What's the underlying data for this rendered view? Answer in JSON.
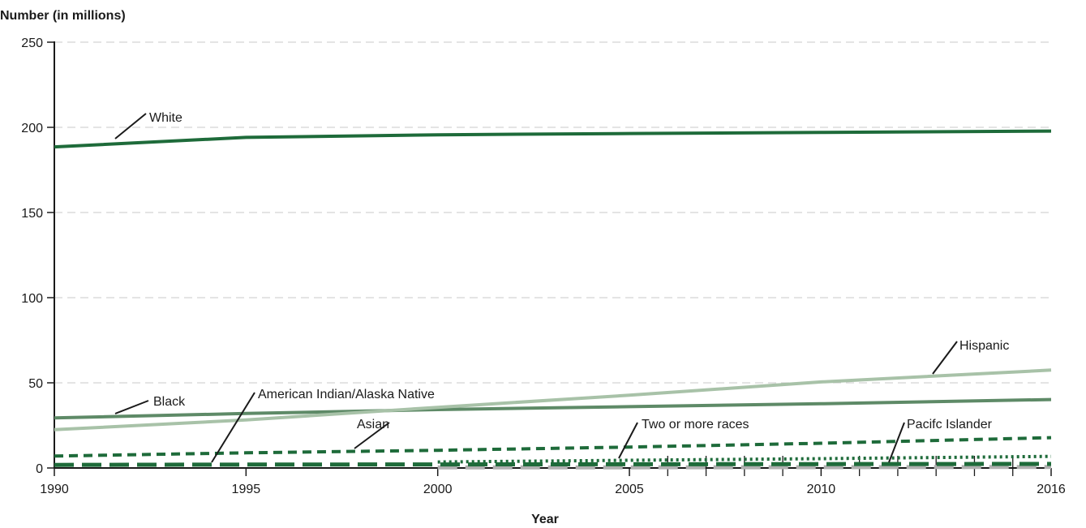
{
  "chart_data": {
    "type": "line",
    "ylabel": "Number (in millions)",
    "xlabel": "Year",
    "xlim": [
      1990,
      2016
    ],
    "ylim": [
      0,
      250
    ],
    "x_ticks": [
      1990,
      1995,
      2000,
      2005,
      2010,
      2016
    ],
    "x_minor_ticks": [
      2006,
      2007,
      2008,
      2009,
      2011,
      2012,
      2013,
      2014,
      2015
    ],
    "y_ticks": [
      0,
      50,
      100,
      150,
      200,
      250
    ],
    "grid": "horizontal dashed",
    "colors": {
      "dark_green": "#1e6b3a",
      "mid_green": "#5e8a67",
      "light_green": "#a8c2a8",
      "gray": "#b0b0b0"
    },
    "series": [
      {
        "name": "White",
        "color": "#1e6b3a",
        "style": "solid",
        "x": [
          1990,
          1995,
          2000,
          2005,
          2010,
          2016
        ],
        "y": [
          188.5,
          194.1,
          195.6,
          196.4,
          197.0,
          197.8
        ]
      },
      {
        "name": "Hispanic",
        "color": "#a8c2a8",
        "style": "solid",
        "x": [
          1990,
          1995,
          2000,
          2005,
          2010,
          2016
        ],
        "y": [
          22.5,
          28.2,
          35.6,
          42.7,
          50.5,
          57.5
        ]
      },
      {
        "name": "Black",
        "color": "#5e8a67",
        "style": "solid",
        "x": [
          1990,
          1995,
          2000,
          2005,
          2010,
          2016
        ],
        "y": [
          29.4,
          32.0,
          34.3,
          36.0,
          37.7,
          40.2
        ]
      },
      {
        "name": "Asian",
        "color": "#1e6b3a",
        "style": "dashed",
        "x": [
          1990,
          1995,
          2000,
          2005,
          2010,
          2016
        ],
        "y": [
          7.0,
          8.9,
          10.4,
          12.3,
          14.5,
          17.8
        ]
      },
      {
        "name": "Two or more races",
        "color": "#1e6b3a",
        "style": "dotted",
        "x": [
          2000,
          2005,
          2010,
          2016
        ],
        "y": [
          3.5,
          4.5,
          5.5,
          6.8
        ]
      },
      {
        "name": "American Indian/Alaska Native",
        "color": "#1e6b3a",
        "style": "longdash",
        "x": [
          1990,
          1995,
          2000,
          2005,
          2010,
          2016
        ],
        "y": [
          1.8,
          2.0,
          2.1,
          2.2,
          2.3,
          2.4
        ]
      },
      {
        "name": "Pacifc Islander",
        "color": "#b0b0b0",
        "style": "longdash",
        "x": [
          2000,
          2005,
          2010,
          2016
        ],
        "y": [
          0.4,
          0.4,
          0.5,
          0.6
        ]
      }
    ],
    "annotations": [
      "White",
      "Hispanic",
      "Black",
      "American Indian/Alaska Native",
      "Asian",
      "Two or more races",
      "Pacifc Islander"
    ]
  }
}
